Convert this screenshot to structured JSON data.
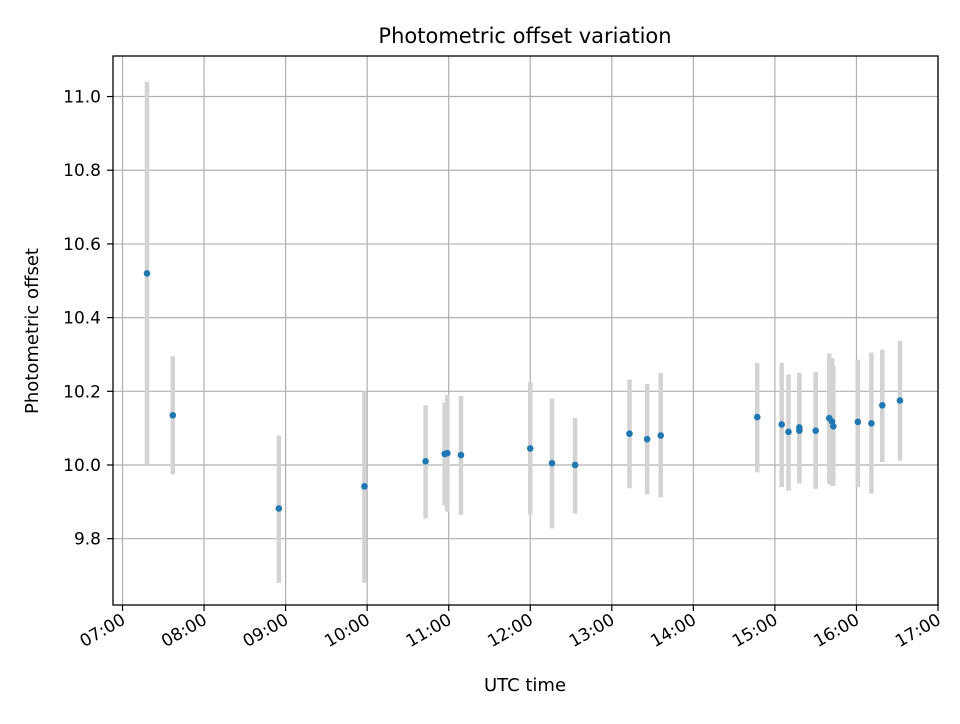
{
  "chart_data": {
    "type": "scatter",
    "title": "Photometric offset variation",
    "xlabel": "UTC time",
    "ylabel": "Photometric offset",
    "x_unit": "UTC time (HH:MM)",
    "xlim": [
      "06:53",
      "17:00"
    ],
    "ylim": [
      9.62,
      11.11
    ],
    "grid": true,
    "x_ticks": [
      "07:00",
      "08:00",
      "09:00",
      "10:00",
      "11:00",
      "12:00",
      "13:00",
      "14:00",
      "15:00",
      "16:00",
      "17:00"
    ],
    "y_ticks": [
      "9.8",
      "10.0",
      "10.2",
      "10.4",
      "10.6",
      "10.8",
      "11.0"
    ],
    "series": [
      {
        "points": [
          {
            "x": "07:18",
            "y": 10.52,
            "err_low": 10.0,
            "err_high": 11.04
          },
          {
            "x": "07:37",
            "y": 10.135,
            "err_low": 9.975,
            "err_high": 10.295
          },
          {
            "x": "08:55",
            "y": 9.882,
            "err_low": 9.68,
            "err_high": 10.08
          },
          {
            "x": "09:58",
            "y": 9.942,
            "err_low": 9.68,
            "err_high": 10.2
          },
          {
            "x": "10:43",
            "y": 10.01,
            "err_low": 9.855,
            "err_high": 10.162
          },
          {
            "x": "10:57",
            "y": 10.03,
            "err_low": 9.89,
            "err_high": 10.17
          },
          {
            "x": "10:59",
            "y": 10.032,
            "err_low": 9.873,
            "err_high": 10.19
          },
          {
            "x": "11:09",
            "y": 10.027,
            "err_low": 9.865,
            "err_high": 10.187
          },
          {
            "x": "12:00",
            "y": 10.045,
            "err_low": 9.865,
            "err_high": 10.225
          },
          {
            "x": "12:16",
            "y": 10.005,
            "err_low": 9.828,
            "err_high": 10.18
          },
          {
            "x": "12:33",
            "y": 10.0,
            "err_low": 9.868,
            "err_high": 10.128
          },
          {
            "x": "13:13",
            "y": 10.085,
            "err_low": 9.937,
            "err_high": 10.232
          },
          {
            "x": "13:26",
            "y": 10.07,
            "err_low": 9.92,
            "err_high": 10.22
          },
          {
            "x": "13:36",
            "y": 10.08,
            "err_low": 9.912,
            "err_high": 10.25
          },
          {
            "x": "14:47",
            "y": 10.13,
            "err_low": 9.98,
            "err_high": 10.277
          },
          {
            "x": "15:05",
            "y": 10.11,
            "err_low": 9.94,
            "err_high": 10.277
          },
          {
            "x": "15:10",
            "y": 10.09,
            "err_low": 9.93,
            "err_high": 10.246
          },
          {
            "x": "15:18",
            "y": 10.102,
            "err_low": 9.95,
            "err_high": 10.25
          },
          {
            "x": "15:18",
            "y": 10.093,
            "err_low": 9.95,
            "err_high": 10.25
          },
          {
            "x": "15:30",
            "y": 10.093,
            "err_low": 9.935,
            "err_high": 10.252
          },
          {
            "x": "15:40",
            "y": 10.127,
            "err_low": 9.948,
            "err_high": 10.303
          },
          {
            "x": "15:42",
            "y": 10.118,
            "err_low": 9.943,
            "err_high": 10.29
          },
          {
            "x": "15:43",
            "y": 10.105,
            "err_low": 9.945,
            "err_high": 10.27
          },
          {
            "x": "16:01",
            "y": 10.117,
            "err_low": 9.94,
            "err_high": 10.286
          },
          {
            "x": "16:11",
            "y": 10.113,
            "err_low": 9.922,
            "err_high": 10.305
          },
          {
            "x": "16:19",
            "y": 10.162,
            "err_low": 10.008,
            "err_high": 10.313
          },
          {
            "x": "16:32",
            "y": 10.175,
            "err_low": 10.012,
            "err_high": 10.337
          }
        ]
      }
    ]
  }
}
